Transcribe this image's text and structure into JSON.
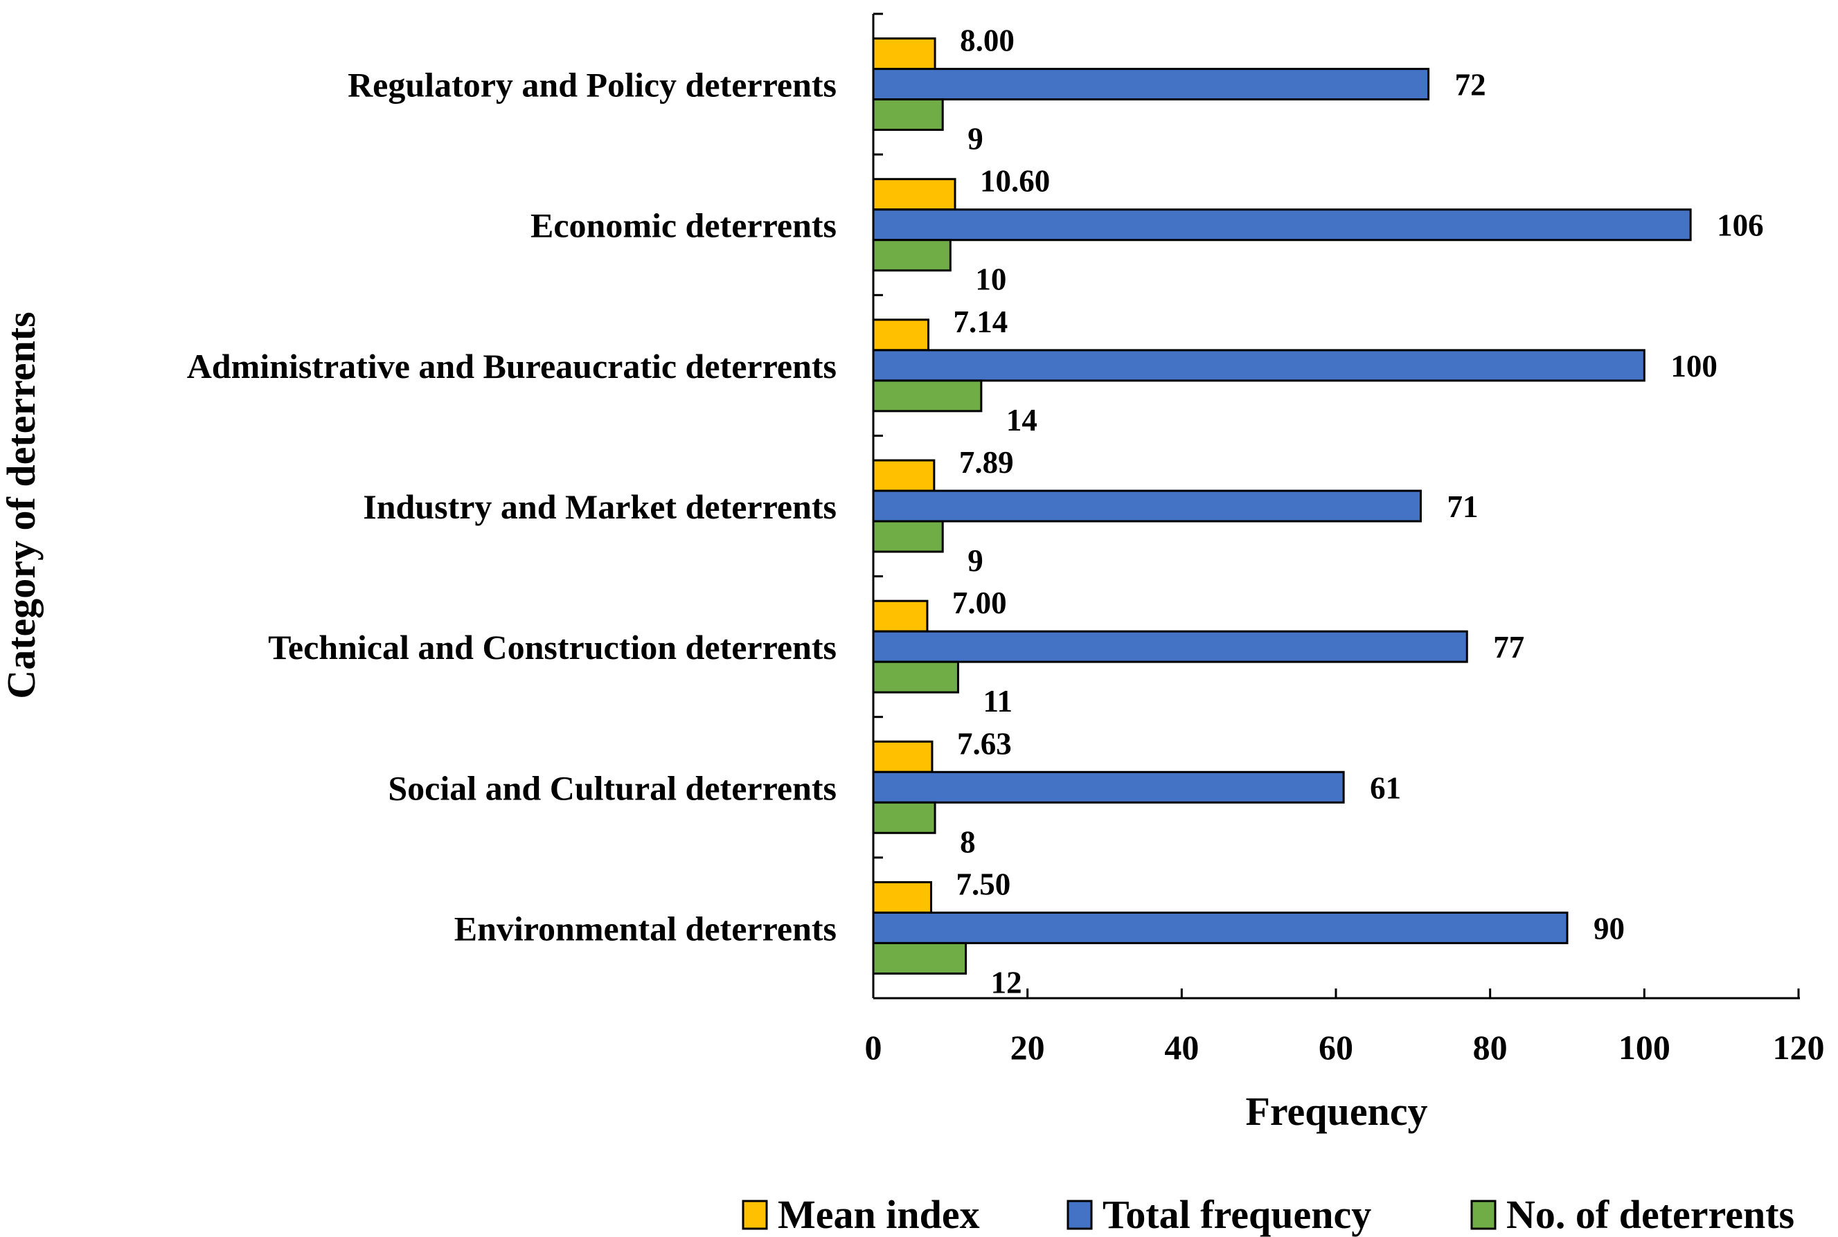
{
  "chart_data": {
    "type": "bar",
    "orientation": "horizontal",
    "title": "",
    "xlabel": "Frequency",
    "ylabel": "Category of deterrents",
    "xlim": [
      0,
      120
    ],
    "xticks": [
      0,
      20,
      40,
      60,
      80,
      100,
      120
    ],
    "grid": false,
    "legend_position": "bottom",
    "categories": [
      "Regulatory and Policy deterrents",
      "Economic deterrents",
      "Administrative and Bureaucratic deterrents",
      "Industry and Market deterrents",
      "Technical and Construction deterrents",
      "Social and Cultural deterrents",
      "Environmental deterrents"
    ],
    "series": [
      {
        "name": "Mean index",
        "color": "#FFC000",
        "values": [
          8.0,
          10.6,
          7.14,
          7.89,
          7.0,
          7.63,
          7.5
        ],
        "labels": [
          "8.00",
          "10.60",
          "7.14",
          "7.89",
          "7.00",
          "7.63",
          "7.50"
        ]
      },
      {
        "name": "Total frequency",
        "color": "#4472C4",
        "values": [
          72,
          106,
          100,
          71,
          77,
          61,
          90
        ],
        "labels": [
          "72",
          "106",
          "100",
          "71",
          "77",
          "61",
          "90"
        ]
      },
      {
        "name": "No. of deterrents",
        "color": "#70AD47",
        "values": [
          9,
          10,
          14,
          9,
          11,
          8,
          12
        ],
        "labels": [
          "9",
          "10",
          "14",
          "9",
          "11",
          "8",
          "12"
        ]
      }
    ]
  }
}
